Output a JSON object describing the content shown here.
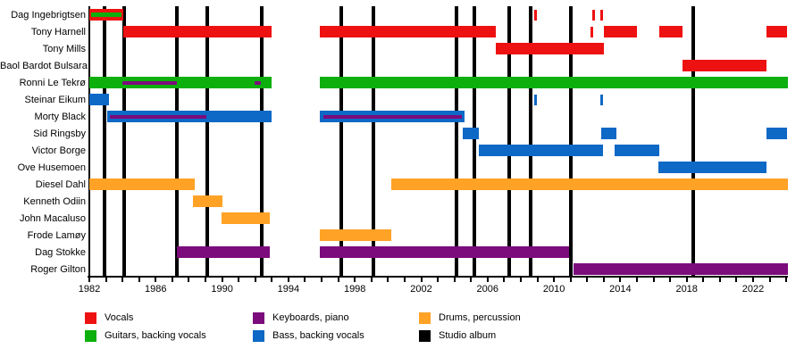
{
  "chart_data": {
    "type": "timeline",
    "title": "",
    "x_axis": {
      "min": 1982,
      "max": 2024.1,
      "tick_interval": 1,
      "label_years": [
        1982,
        1986,
        1990,
        1994,
        1998,
        2002,
        2006,
        2010,
        2014,
        2018,
        2022
      ]
    },
    "role_colors": {
      "vocals": "#EE1111",
      "guitars": "#0CAF0C",
      "keyboards": "#7C0C7C",
      "bass": "#0E68C6",
      "drums": "#FFA226",
      "album": "#000000"
    },
    "album_line_years": [
      1982.9,
      1984.1,
      1987.3,
      1989.1,
      1992.4,
      1997.2,
      1999.1,
      2004.1,
      2005.2,
      2007.3,
      2008.6,
      2011.0,
      2018.4
    ],
    "members": [
      {
        "name": "Dag Ingebrigtsen",
        "segments": [
          {
            "role": "vocals",
            "from": 1982.0,
            "to": 1984.05,
            "stripes": [
              {
                "role": "guitars",
                "from": 1982.1,
                "to": 1983.95,
                "h": 5
              }
            ]
          }
        ],
        "guest_marks": [
          {
            "role": "vocals",
            "year": 2008.9
          },
          {
            "role": "vocals",
            "year": 2012.4
          },
          {
            "role": "vocals",
            "year": 2012.85
          }
        ]
      },
      {
        "name": "Tony Harnell",
        "segments": [
          {
            "role": "vocals",
            "from": 1984.05,
            "to": 1993.0
          },
          {
            "role": "vocals",
            "from": 1995.9,
            "to": 2006.5
          },
          {
            "role": "vocals",
            "from": 2013.0,
            "to": 2015.0
          },
          {
            "role": "vocals",
            "from": 2016.35,
            "to": 2017.75
          },
          {
            "role": "vocals",
            "from": 2022.8,
            "to": 2024.05
          }
        ],
        "guest_marks": [
          {
            "role": "vocals",
            "year": 2012.3
          }
        ]
      },
      {
        "name": "Tony Mills",
        "segments": [
          {
            "role": "vocals",
            "from": 2006.5,
            "to": 2013.0
          }
        ]
      },
      {
        "name": "Baol Bardot Bulsara",
        "segments": [
          {
            "role": "vocals",
            "from": 2017.75,
            "to": 2022.8
          }
        ]
      },
      {
        "name": "Ronni Le Tekrø",
        "segments": [
          {
            "role": "guitars",
            "from": 1982.0,
            "to": 1993.0,
            "stripes": [
              {
                "role": "keyboards",
                "from": 1984.0,
                "to": 1987.3
              },
              {
                "role": "keyboards",
                "from": 1991.95,
                "to": 1992.35
              }
            ]
          },
          {
            "role": "guitars",
            "from": 1995.9,
            "to": 2024.1
          }
        ]
      },
      {
        "name": "Steinar Eikum",
        "segments": [
          {
            "role": "bass",
            "from": 1982.0,
            "to": 1983.2
          }
        ],
        "guest_marks": [
          {
            "role": "bass",
            "year": 2008.9
          },
          {
            "role": "bass",
            "year": 2012.85
          }
        ]
      },
      {
        "name": "Morty Black",
        "segments": [
          {
            "role": "bass",
            "from": 1983.1,
            "to": 1993.0,
            "stripes": [
              {
                "role": "keyboards",
                "from": 1983.25,
                "to": 1989.05
              }
            ]
          },
          {
            "role": "bass",
            "from": 1995.9,
            "to": 2004.6,
            "stripes": [
              {
                "role": "keyboards",
                "from": 1996.1,
                "to": 2004.45
              }
            ]
          }
        ]
      },
      {
        "name": "Sid Ringsby",
        "segments": [
          {
            "role": "bass",
            "from": 2004.5,
            "to": 2005.45
          },
          {
            "role": "bass",
            "from": 2012.85,
            "to": 2013.75
          },
          {
            "role": "bass",
            "from": 2022.8,
            "to": 2024.05
          }
        ]
      },
      {
        "name": "Victor Borge",
        "segments": [
          {
            "role": "bass",
            "from": 2005.45,
            "to": 2012.95
          },
          {
            "role": "bass",
            "from": 2013.65,
            "to": 2016.35
          }
        ]
      },
      {
        "name": "Ove Husemoen",
        "segments": [
          {
            "role": "bass",
            "from": 2016.3,
            "to": 2022.8
          }
        ]
      },
      {
        "name": "Diesel Dahl",
        "segments": [
          {
            "role": "drums",
            "from": 1982.0,
            "to": 1988.35
          },
          {
            "role": "drums",
            "from": 2000.2,
            "to": 2024.1
          }
        ]
      },
      {
        "name": "Kenneth Odiin",
        "segments": [
          {
            "role": "drums",
            "from": 1988.25,
            "to": 1990.0
          }
        ]
      },
      {
        "name": "John Macaluso",
        "segments": [
          {
            "role": "drums",
            "from": 1989.95,
            "to": 1992.9
          }
        ]
      },
      {
        "name": "Frode Lamøy",
        "segments": [
          {
            "role": "drums",
            "from": 1995.9,
            "to": 2000.2
          }
        ]
      },
      {
        "name": "Dag Stokke",
        "segments": [
          {
            "role": "keyboards",
            "from": 1987.3,
            "to": 1992.9
          },
          {
            "role": "keyboards",
            "from": 1995.9,
            "to": 2010.9
          }
        ]
      },
      {
        "name": "Roger Gilton",
        "segments": [
          {
            "role": "keyboards",
            "from": 2011.2,
            "to": 2024.1
          }
        ]
      }
    ],
    "legend": [
      {
        "label": "Vocals",
        "role": "vocals"
      },
      {
        "label": "Guitars, backing vocals",
        "role": "guitars"
      },
      {
        "label": "Keyboards, piano",
        "role": "keyboards"
      },
      {
        "label": "Bass, backing vocals",
        "role": "bass"
      },
      {
        "label": "Drums, percussion",
        "role": "drums"
      },
      {
        "label": "Studio album",
        "role": "album"
      }
    ]
  }
}
